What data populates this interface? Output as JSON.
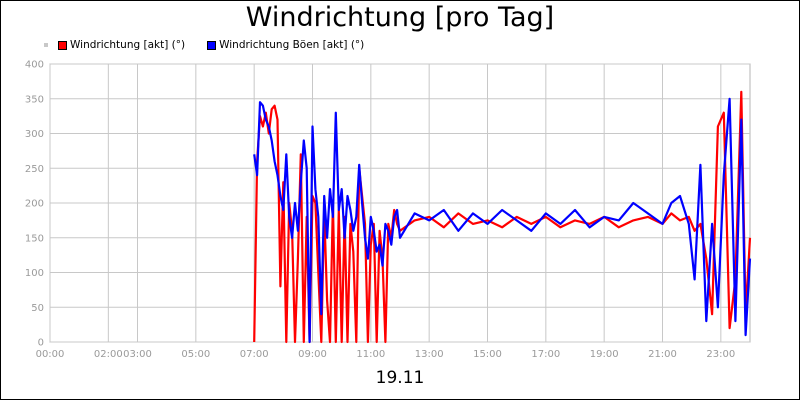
{
  "chart_data": {
    "type": "line",
    "title": "Windrichtung [pro Tag]",
    "xlabel": "19.11",
    "ylabel": "",
    "ylim": [
      0,
      400
    ],
    "yticks": [
      0,
      50,
      100,
      150,
      200,
      250,
      300,
      350,
      400
    ],
    "xlim": [
      0,
      24
    ],
    "xticks": [
      {
        "h": 0,
        "label": "00:00"
      },
      {
        "h": 2,
        "label": "02:00"
      },
      {
        "h": 3,
        "label": "03:00"
      },
      {
        "h": 5,
        "label": "05:00"
      },
      {
        "h": 7,
        "label": "07:00"
      },
      {
        "h": 9,
        "label": "09:00"
      },
      {
        "h": 11,
        "label": "11:00"
      },
      {
        "h": 13,
        "label": "13:00"
      },
      {
        "h": 15,
        "label": "15:00"
      },
      {
        "h": 17,
        "label": "17:00"
      },
      {
        "h": 19,
        "label": "19:00"
      },
      {
        "h": 21,
        "label": "21:00"
      },
      {
        "h": 23,
        "label": "23:00"
      }
    ],
    "grid": true,
    "legend_position": "top-left",
    "series": [
      {
        "name": "Windrichtung [akt] (°)",
        "color": "#ff0000",
        "x": [
          7.0,
          7.1,
          7.2,
          7.3,
          7.4,
          7.5,
          7.6,
          7.7,
          7.8,
          7.9,
          8.0,
          8.1,
          8.2,
          8.3,
          8.4,
          8.5,
          8.6,
          8.7,
          8.8,
          8.9,
          9.0,
          9.1,
          9.2,
          9.3,
          9.4,
          9.5,
          9.6,
          9.7,
          9.8,
          9.9,
          10.0,
          10.1,
          10.2,
          10.3,
          10.4,
          10.5,
          10.6,
          10.7,
          10.8,
          10.9,
          11.0,
          11.1,
          11.2,
          11.3,
          11.4,
          11.5,
          11.6,
          11.7,
          11.8,
          11.9,
          12.0,
          12.5,
          13.0,
          13.5,
          14.0,
          14.5,
          15.0,
          15.5,
          16.0,
          16.5,
          17.0,
          17.5,
          18.0,
          18.5,
          19.0,
          19.5,
          20.0,
          20.5,
          21.0,
          21.3,
          21.6,
          21.9,
          22.1,
          22.3,
          22.5,
          22.7,
          22.9,
          23.1,
          23.3,
          23.5,
          23.7,
          23.85,
          24.0
        ],
        "values": [
          0,
          260,
          325,
          310,
          330,
          300,
          335,
          340,
          320,
          80,
          230,
          0,
          200,
          160,
          0,
          120,
          270,
          0,
          180,
          0,
          210,
          200,
          100,
          0,
          190,
          60,
          0,
          200,
          0,
          190,
          0,
          180,
          0,
          170,
          130,
          0,
          250,
          210,
          170,
          0,
          140,
          170,
          0,
          160,
          120,
          0,
          170,
          150,
          190,
          170,
          160,
          175,
          180,
          165,
          185,
          170,
          175,
          165,
          180,
          170,
          180,
          165,
          175,
          170,
          180,
          165,
          175,
          180,
          170,
          185,
          175,
          180,
          160,
          170,
          120,
          40,
          310,
          330,
          20,
          90,
          360,
          40,
          150
        ]
      },
      {
        "name": "Windrichtung Böen [akt] (°)",
        "color": "#0000ff",
        "x": [
          7.0,
          7.1,
          7.2,
          7.3,
          7.4,
          7.5,
          7.6,
          7.7,
          7.8,
          7.9,
          8.0,
          8.1,
          8.2,
          8.3,
          8.4,
          8.5,
          8.6,
          8.7,
          8.8,
          8.9,
          9.0,
          9.1,
          9.2,
          9.3,
          9.4,
          9.5,
          9.6,
          9.7,
          9.8,
          9.9,
          10.0,
          10.1,
          10.2,
          10.3,
          10.4,
          10.5,
          10.6,
          10.7,
          10.8,
          10.9,
          11.0,
          11.1,
          11.2,
          11.3,
          11.4,
          11.5,
          11.6,
          11.7,
          11.8,
          11.9,
          12.0,
          12.5,
          13.0,
          13.5,
          14.0,
          14.5,
          15.0,
          15.5,
          16.0,
          16.5,
          17.0,
          17.5,
          18.0,
          18.5,
          19.0,
          19.5,
          20.0,
          20.5,
          21.0,
          21.3,
          21.6,
          21.9,
          22.1,
          22.3,
          22.5,
          22.7,
          22.9,
          23.1,
          23.3,
          23.5,
          23.7,
          23.85,
          24.0
        ],
        "values": [
          270,
          240,
          345,
          340,
          320,
          310,
          290,
          260,
          240,
          210,
          190,
          270,
          180,
          150,
          200,
          160,
          230,
          290,
          250,
          0,
          310,
          220,
          180,
          40,
          210,
          150,
          220,
          180,
          330,
          190,
          220,
          150,
          210,
          190,
          160,
          180,
          255,
          200,
          150,
          120,
          180,
          160,
          130,
          140,
          110,
          170,
          160,
          140,
          180,
          190,
          150,
          185,
          175,
          190,
          160,
          185,
          170,
          190,
          175,
          160,
          185,
          170,
          190,
          165,
          180,
          175,
          200,
          185,
          170,
          200,
          210,
          170,
          90,
          255,
          30,
          170,
          50,
          240,
          350,
          30,
          320,
          10,
          120
        ]
      }
    ]
  },
  "legend": {
    "items": [
      {
        "label": "Windrichtung [akt] (°)",
        "color": "#ff0000"
      },
      {
        "label": "Windrichtung Böen [akt] (°)",
        "color": "#0000ff"
      }
    ]
  }
}
